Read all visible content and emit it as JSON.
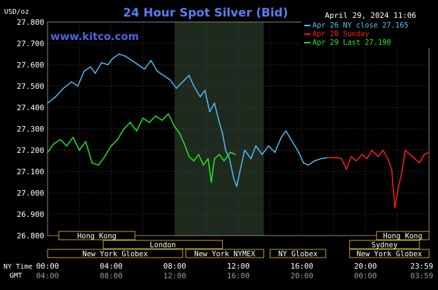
{
  "chart_data": {
    "type": "line",
    "title": "24 Hour Spot Silver (Bid)",
    "timestamp": "April 29, 2024 11:06",
    "brand": "www.kitco.com",
    "unit_label": "USD/oz",
    "ylim": [
      26.8,
      27.8
    ],
    "y_ticks": [
      "27.800",
      "27.700",
      "27.600",
      "27.500",
      "27.400",
      "27.300",
      "27.200",
      "27.100",
      "27.000",
      "26.900",
      "26.800"
    ],
    "x_hours": [
      0,
      24
    ],
    "x_ticks_ny": [
      "00:00",
      "04:00",
      "08:00",
      "12:00",
      "16:00",
      "20:00",
      "23:59"
    ],
    "x_ticks_gmt": [
      "04:00",
      "08:00",
      "12:00",
      "16:00",
      "20:00",
      "00:00",
      "03:59"
    ],
    "row_labels": {
      "ny": "NY Time",
      "gmt": "GMT"
    },
    "legend": [
      {
        "text": "Apr 26 NY close 27.165",
        "color": "#4fc3f7"
      },
      {
        "text": "Apr 28 Sunday",
        "color": "#ff2020"
      },
      {
        "text": "Apr 29 Last 27.190",
        "color": "#22ee22"
      }
    ],
    "sessions": [
      {
        "label": "Hong Kong",
        "start": 0.7,
        "end": 5.5,
        "row": 0
      },
      {
        "label": "London",
        "start": 3.5,
        "end": 11.0,
        "row": 1
      },
      {
        "label": "New York Globex",
        "start": 0.0,
        "end": 8.5,
        "row": 2
      },
      {
        "label": "New York NYMEX",
        "start": 8.7,
        "end": 13.6,
        "row": 2
      },
      {
        "label": "NY Globex",
        "start": 14.0,
        "end": 17.5,
        "row": 2
      },
      {
        "label": "Hong Kong",
        "start": 20.7,
        "end": 24.0,
        "row": 0
      },
      {
        "label": "Sydney",
        "start": 19.0,
        "end": 23.4,
        "row": 1
      },
      {
        "label": "New York Globex",
        "start": 19.0,
        "end": 24.0,
        "row": 2
      }
    ],
    "series": [
      {
        "name": "Apr 26 NY close 27.165",
        "color": "#4fc3f7",
        "points": [
          [
            0.0,
            27.42
          ],
          [
            0.5,
            27.45
          ],
          [
            1.0,
            27.49
          ],
          [
            1.5,
            27.52
          ],
          [
            1.9,
            27.5
          ],
          [
            2.3,
            27.57
          ],
          [
            2.7,
            27.59
          ],
          [
            3.0,
            27.56
          ],
          [
            3.4,
            27.61
          ],
          [
            3.8,
            27.6
          ],
          [
            4.1,
            27.63
          ],
          [
            4.5,
            27.65
          ],
          [
            4.9,
            27.64
          ],
          [
            5.3,
            27.62
          ],
          [
            5.7,
            27.6
          ],
          [
            6.1,
            27.58
          ],
          [
            6.5,
            27.62
          ],
          [
            6.9,
            27.57
          ],
          [
            7.3,
            27.55
          ],
          [
            7.7,
            27.53
          ],
          [
            8.1,
            27.49
          ],
          [
            8.5,
            27.52
          ],
          [
            8.9,
            27.55
          ],
          [
            9.2,
            27.5
          ],
          [
            9.6,
            27.45
          ],
          [
            9.9,
            27.48
          ],
          [
            10.2,
            27.38
          ],
          [
            10.5,
            27.42
          ],
          [
            10.8,
            27.33
          ],
          [
            11.0,
            27.28
          ],
          [
            11.2,
            27.2
          ],
          [
            11.45,
            27.16
          ],
          [
            11.7,
            27.07
          ],
          [
            11.9,
            27.03
          ],
          [
            12.1,
            27.1
          ],
          [
            12.4,
            27.2
          ],
          [
            12.8,
            27.16
          ],
          [
            13.1,
            27.22
          ],
          [
            13.5,
            27.18
          ],
          [
            13.9,
            27.22
          ],
          [
            14.3,
            27.19
          ],
          [
            14.7,
            27.26
          ],
          [
            15.0,
            27.29
          ],
          [
            15.4,
            27.24
          ],
          [
            15.8,
            27.19
          ],
          [
            16.1,
            27.14
          ],
          [
            16.4,
            27.13
          ],
          [
            16.8,
            27.15
          ],
          [
            17.2,
            27.16
          ],
          [
            17.6,
            27.165
          ]
        ]
      },
      {
        "name": "Apr 28 Sunday",
        "color": "#ff2020",
        "points": [
          [
            17.6,
            27.165
          ],
          [
            18.2,
            27.165
          ],
          [
            18.5,
            27.16
          ],
          [
            18.8,
            27.11
          ],
          [
            19.1,
            27.17
          ],
          [
            19.4,
            27.15
          ],
          [
            19.8,
            27.18
          ],
          [
            20.1,
            27.16
          ],
          [
            20.4,
            27.2
          ],
          [
            20.8,
            27.17
          ],
          [
            21.1,
            27.2
          ],
          [
            21.4,
            27.16
          ],
          [
            21.65,
            27.11
          ],
          [
            21.85,
            26.93
          ],
          [
            22.05,
            27.02
          ],
          [
            22.3,
            27.1
          ],
          [
            22.5,
            27.2
          ],
          [
            22.8,
            27.18
          ],
          [
            23.1,
            27.16
          ],
          [
            23.4,
            27.14
          ],
          [
            23.7,
            27.18
          ],
          [
            23.99,
            27.19
          ]
        ]
      },
      {
        "name": "Apr 29 Last 27.190",
        "color": "#22ee22",
        "points": [
          [
            0.0,
            27.19
          ],
          [
            0.4,
            27.23
          ],
          [
            0.8,
            27.25
          ],
          [
            1.2,
            27.22
          ],
          [
            1.6,
            27.26
          ],
          [
            2.0,
            27.2
          ],
          [
            2.4,
            27.24
          ],
          [
            2.8,
            27.14
          ],
          [
            3.2,
            27.13
          ],
          [
            3.6,
            27.17
          ],
          [
            4.0,
            27.22
          ],
          [
            4.4,
            27.25
          ],
          [
            4.8,
            27.3
          ],
          [
            5.2,
            27.33
          ],
          [
            5.6,
            27.29
          ],
          [
            6.0,
            27.35
          ],
          [
            6.4,
            27.33
          ],
          [
            6.8,
            27.36
          ],
          [
            7.2,
            27.34
          ],
          [
            7.6,
            27.37
          ],
          [
            8.0,
            27.31
          ],
          [
            8.3,
            27.28
          ],
          [
            8.6,
            27.23
          ],
          [
            8.9,
            27.17
          ],
          [
            9.2,
            27.15
          ],
          [
            9.5,
            27.18
          ],
          [
            9.8,
            27.13
          ],
          [
            10.1,
            27.16
          ],
          [
            10.3,
            27.05
          ],
          [
            10.5,
            27.16
          ],
          [
            10.8,
            27.18
          ],
          [
            11.1,
            27.15
          ],
          [
            11.5,
            27.19
          ],
          [
            11.8,
            27.18
          ]
        ]
      }
    ],
    "highlight_band": [
      8.0,
      13.6
    ]
  }
}
